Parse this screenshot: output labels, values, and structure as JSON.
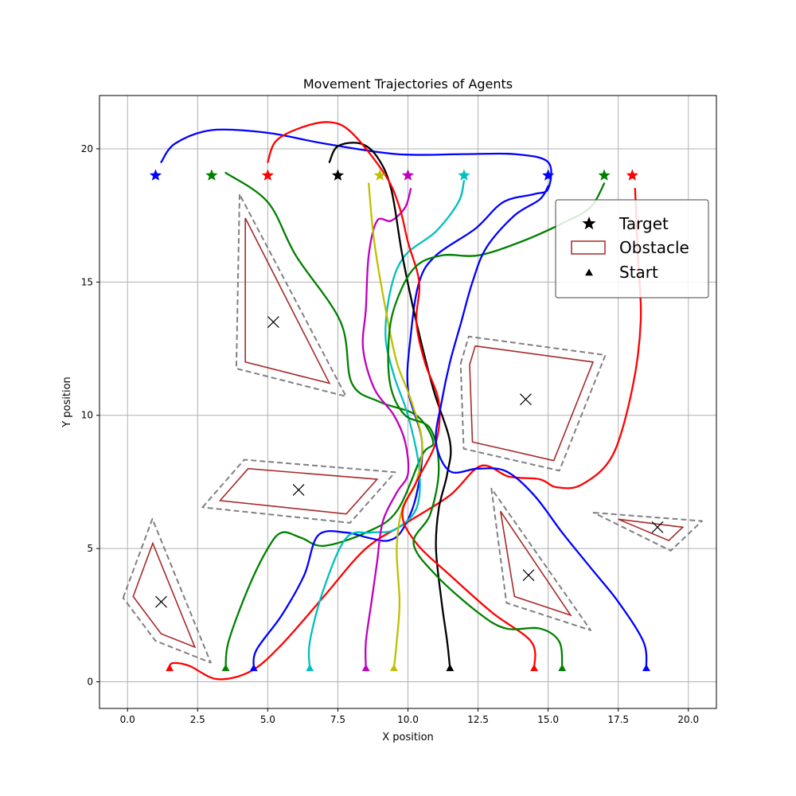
{
  "chart_data": {
    "type": "line",
    "title": "Movement Trajectories of Agents",
    "xlabel": "X position",
    "ylabel": "Y position",
    "xlim": [
      -1,
      21
    ],
    "ylim": [
      -1,
      22
    ],
    "xticks": [
      {
        "value": 0,
        "label": "0.0"
      },
      {
        "value": 2.5,
        "label": "2.5"
      },
      {
        "value": 5,
        "label": "5.0"
      },
      {
        "value": 7.5,
        "label": "7.5"
      },
      {
        "value": 10,
        "label": "10.0"
      },
      {
        "value": 12.5,
        "label": "12.5"
      },
      {
        "value": 15,
        "label": "15.0"
      },
      {
        "value": 17.5,
        "label": "17.5"
      },
      {
        "value": 20,
        "label": "20.0"
      }
    ],
    "yticks": [
      {
        "value": 0,
        "label": "0"
      },
      {
        "value": 5,
        "label": "5"
      },
      {
        "value": 10,
        "label": "10"
      },
      {
        "value": 15,
        "label": "15"
      },
      {
        "value": 20,
        "label": "20"
      }
    ],
    "grid": true,
    "legend": {
      "placement": "upper-right",
      "entries": [
        {
          "label": "Target",
          "marker": "star"
        },
        {
          "label": "Obstacle",
          "marker": "rect"
        },
        {
          "label": "Start",
          "marker": "triangle"
        }
      ]
    },
    "colors": {
      "obstacle": "#a52a2a",
      "buffer": "#808080",
      "grid": "#b0b0b0"
    },
    "obstacles": [
      {
        "polygon": [
          [
            0.2,
            3.2
          ],
          [
            0.9,
            5.2
          ],
          [
            2.4,
            1.3
          ],
          [
            1.2,
            1.8
          ]
        ],
        "center": [
          1.2,
          3.0
        ]
      },
      {
        "polygon": [
          [
            4.2,
            17.4
          ],
          [
            4.2,
            12.0
          ],
          [
            7.2,
            11.2
          ]
        ],
        "center": [
          5.2,
          13.5
        ]
      },
      {
        "polygon": [
          [
            3.3,
            6.8
          ],
          [
            4.3,
            8.0
          ],
          [
            8.9,
            7.6
          ],
          [
            7.8,
            6.3
          ]
        ],
        "center": [
          6.1,
          7.2
        ]
      },
      {
        "polygon": [
          [
            12.2,
            11.9
          ],
          [
            12.4,
            12.6
          ],
          [
            16.6,
            12.0
          ],
          [
            15.2,
            8.3
          ],
          [
            12.3,
            9.0
          ]
        ],
        "center": [
          14.2,
          10.6
        ]
      },
      {
        "polygon": [
          [
            13.3,
            6.4
          ],
          [
            13.8,
            3.2
          ],
          [
            15.8,
            2.5
          ]
        ],
        "center": [
          14.3,
          4.0
        ]
      },
      {
        "polygon": [
          [
            17.5,
            6.1
          ],
          [
            19.8,
            5.8
          ],
          [
            19.3,
            5.3
          ]
        ],
        "center": [
          18.9,
          5.8
        ]
      }
    ],
    "agents": [
      {
        "color": "#ff0000",
        "start": [
          1.5,
          0.5
        ],
        "target": [
          5.0,
          19.0
        ],
        "path": [
          [
            1.5,
            0.5
          ],
          [
            1.6,
            0.7
          ],
          [
            2.2,
            0.6
          ],
          [
            3.2,
            0.1
          ],
          [
            4.4,
            0.4
          ],
          [
            5.5,
            1.4
          ],
          [
            7.0,
            3.2
          ],
          [
            8.5,
            5.0
          ],
          [
            10.0,
            6.0
          ],
          [
            11.5,
            7.0
          ],
          [
            12.6,
            8.1
          ],
          [
            13.6,
            7.7
          ],
          [
            14.7,
            7.6
          ],
          [
            15.3,
            7.3
          ],
          [
            16.2,
            7.4
          ],
          [
            17.3,
            8.5
          ],
          [
            18.0,
            11.0
          ],
          [
            18.3,
            13.5
          ],
          [
            18.2,
            16.0
          ],
          [
            18.1,
            18.5
          ]
        ]
      },
      {
        "color": "#008000",
        "start": [
          3.5,
          0.5
        ],
        "target": [
          3.0,
          19.0
        ],
        "path": [
          [
            3.5,
            0.5
          ],
          [
            3.6,
            1.5
          ],
          [
            4.3,
            3.5
          ],
          [
            5.0,
            5.0
          ],
          [
            5.5,
            5.6
          ],
          [
            6.2,
            5.4
          ],
          [
            7.0,
            5.1
          ],
          [
            8.5,
            5.6
          ],
          [
            9.6,
            6.4
          ],
          [
            10.5,
            8.5
          ],
          [
            10.9,
            9.0
          ],
          [
            10.3,
            10.0
          ],
          [
            9.0,
            10.5
          ],
          [
            8.0,
            11.2
          ],
          [
            7.6,
            13.5
          ],
          [
            6.0,
            16.0
          ],
          [
            5.0,
            18.0
          ],
          [
            3.5,
            19.1
          ]
        ]
      },
      {
        "color": "#0000ff",
        "start": [
          4.5,
          0.5
        ],
        "target": [
          1.0,
          19.0
        ],
        "path": [
          [
            4.5,
            0.5
          ],
          [
            4.6,
            1.2
          ],
          [
            5.5,
            2.5
          ],
          [
            6.3,
            4.0
          ],
          [
            6.8,
            5.5
          ],
          [
            7.8,
            5.6
          ],
          [
            8.6,
            5.4
          ],
          [
            9.3,
            5.3
          ],
          [
            9.8,
            5.7
          ],
          [
            10.3,
            7.0
          ],
          [
            10.5,
            9.0
          ],
          [
            10.0,
            11.0
          ],
          [
            10.1,
            13.0
          ],
          [
            10.4,
            15.0
          ],
          [
            11.0,
            16.0
          ],
          [
            12.4,
            17.0
          ],
          [
            13.4,
            18.0
          ],
          [
            14.5,
            18.3
          ],
          [
            15.0,
            18.5
          ],
          [
            15.0,
            19.5
          ],
          [
            13.8,
            19.8
          ],
          [
            12.0,
            19.8
          ],
          [
            9.6,
            19.8
          ],
          [
            7.0,
            20.2
          ],
          [
            5.0,
            20.6
          ],
          [
            3.0,
            20.7
          ],
          [
            1.7,
            20.2
          ],
          [
            1.2,
            19.5
          ]
        ]
      },
      {
        "color": "#00bfbf",
        "start": [
          6.5,
          0.5
        ],
        "target": [
          12.0,
          19.0
        ],
        "path": [
          [
            6.5,
            0.5
          ],
          [
            6.5,
            1.5
          ],
          [
            7.0,
            3.5
          ],
          [
            7.8,
            5.4
          ],
          [
            8.7,
            5.6
          ],
          [
            9.5,
            5.7
          ],
          [
            10.3,
            6.5
          ],
          [
            10.4,
            8.0
          ],
          [
            10.0,
            10.0
          ],
          [
            9.5,
            11.5
          ],
          [
            9.2,
            13.0
          ],
          [
            9.4,
            14.8
          ],
          [
            9.9,
            16.0
          ],
          [
            11.0,
            16.9
          ],
          [
            11.8,
            18.0
          ],
          [
            12.0,
            18.8
          ]
        ]
      },
      {
        "color": "#bf00bf",
        "start": [
          8.5,
          0.5
        ],
        "target": [
          10.0,
          19.0
        ],
        "path": [
          [
            8.5,
            0.5
          ],
          [
            8.5,
            1.5
          ],
          [
            8.7,
            3.0
          ],
          [
            8.9,
            4.5
          ],
          [
            9.1,
            6.0
          ],
          [
            9.6,
            7.1
          ],
          [
            10.0,
            7.8
          ],
          [
            9.9,
            9.0
          ],
          [
            9.5,
            10.0
          ],
          [
            8.8,
            11.0
          ],
          [
            8.4,
            12.5
          ],
          [
            8.5,
            14.0
          ],
          [
            8.6,
            16.0
          ],
          [
            8.9,
            17.3
          ],
          [
            9.4,
            17.3
          ],
          [
            9.9,
            17.8
          ],
          [
            10.1,
            18.5
          ]
        ]
      },
      {
        "color": "#bfbf00",
        "start": [
          9.5,
          0.5
        ],
        "target": [
          9.0,
          19.0
        ],
        "path": [
          [
            9.5,
            0.5
          ],
          [
            9.6,
            1.5
          ],
          [
            9.7,
            3.0
          ],
          [
            9.6,
            5.0
          ],
          [
            9.8,
            6.5
          ],
          [
            10.3,
            7.5
          ],
          [
            10.5,
            9.0
          ],
          [
            10.1,
            10.6
          ],
          [
            9.6,
            12.0
          ],
          [
            9.2,
            14.0
          ],
          [
            8.8,
            16.5
          ],
          [
            8.6,
            18.7
          ]
        ]
      },
      {
        "color": "#000000",
        "start": [
          11.5,
          0.5
        ],
        "target": [
          7.5,
          19.0
        ],
        "path": [
          [
            11.5,
            0.5
          ],
          [
            11.4,
            1.5
          ],
          [
            11.2,
            3.0
          ],
          [
            11.0,
            5.0
          ],
          [
            11.1,
            6.5
          ],
          [
            11.4,
            7.8
          ],
          [
            11.5,
            9.0
          ],
          [
            10.9,
            11.0
          ],
          [
            10.3,
            13.5
          ],
          [
            9.8,
            16.0
          ],
          [
            9.4,
            18.5
          ],
          [
            8.9,
            19.7
          ],
          [
            8.3,
            20.2
          ],
          [
            7.5,
            20.1
          ],
          [
            7.2,
            19.5
          ]
        ]
      },
      {
        "color": "#ff0000",
        "start": [
          14.5,
          0.5
        ],
        "target": [
          18.0,
          19.0
        ],
        "path": [
          [
            14.5,
            0.5
          ],
          [
            14.4,
            1.5
          ],
          [
            13.0,
            2.6
          ],
          [
            11.5,
            4.0
          ],
          [
            10.3,
            5.2
          ],
          [
            9.8,
            6.3
          ],
          [
            10.3,
            7.5
          ],
          [
            11.0,
            9.0
          ],
          [
            11.1,
            10.5
          ],
          [
            10.6,
            12.0
          ],
          [
            10.3,
            13.5
          ],
          [
            10.4,
            15.0
          ],
          [
            10.0,
            16.5
          ],
          [
            9.7,
            17.8
          ],
          [
            9.2,
            19.0
          ],
          [
            8.0,
            20.6
          ],
          [
            7.2,
            21.0
          ],
          [
            6.2,
            20.8
          ],
          [
            5.3,
            20.3
          ],
          [
            5.0,
            19.5
          ]
        ]
      },
      {
        "color": "#008000",
        "start": [
          15.5,
          0.5
        ],
        "target": [
          17.0,
          19.0
        ],
        "path": [
          [
            15.5,
            0.5
          ],
          [
            15.4,
            1.5
          ],
          [
            14.7,
            2.0
          ],
          [
            13.5,
            2.0
          ],
          [
            12.5,
            2.6
          ],
          [
            11.0,
            4.0
          ],
          [
            10.2,
            5.2
          ],
          [
            10.8,
            6.3
          ],
          [
            11.1,
            8.0
          ],
          [
            10.8,
            9.5
          ],
          [
            9.9,
            10.0
          ],
          [
            9.4,
            11.0
          ],
          [
            9.3,
            12.5
          ],
          [
            9.5,
            14.0
          ],
          [
            10.2,
            15.5
          ],
          [
            11.2,
            16.0
          ],
          [
            12.5,
            16.0
          ],
          [
            14.0,
            16.5
          ],
          [
            15.5,
            17.2
          ],
          [
            16.5,
            17.8
          ],
          [
            17.0,
            18.7
          ]
        ]
      },
      {
        "color": "#0000ff",
        "start": [
          18.5,
          0.5
        ],
        "target": [
          15.0,
          19.0
        ],
        "path": [
          [
            18.5,
            0.5
          ],
          [
            18.4,
            1.5
          ],
          [
            17.5,
            3.0
          ],
          [
            16.5,
            4.3
          ],
          [
            15.5,
            5.6
          ],
          [
            14.5,
            7.0
          ],
          [
            13.5,
            7.9
          ],
          [
            12.5,
            8.0
          ],
          [
            11.5,
            7.9
          ],
          [
            11.0,
            9.0
          ],
          [
            11.2,
            10.5
          ],
          [
            11.5,
            12.0
          ],
          [
            11.9,
            13.5
          ],
          [
            12.3,
            15.0
          ],
          [
            12.8,
            16.3
          ],
          [
            13.8,
            17.5
          ],
          [
            14.7,
            18.1
          ],
          [
            15.0,
            18.6
          ]
        ]
      }
    ]
  }
}
